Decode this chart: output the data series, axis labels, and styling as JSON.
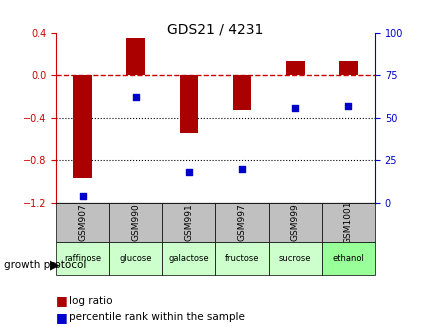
{
  "title": "GDS21 / 4231",
  "samples": [
    "GSM907",
    "GSM990",
    "GSM991",
    "GSM997",
    "GSM999",
    "GSM1001"
  ],
  "protocols": [
    "raffinose",
    "glucose",
    "galactose",
    "fructose",
    "sucrose",
    "ethanol"
  ],
  "log_ratio": [
    -0.97,
    0.35,
    -0.54,
    -0.33,
    0.13,
    0.13
  ],
  "percentile_rank": [
    4,
    62,
    18,
    20,
    56,
    57
  ],
  "ylim_left": [
    -1.2,
    0.4
  ],
  "yticks_left": [
    -1.2,
    -0.8,
    -0.4,
    0.0,
    0.4
  ],
  "ylim_right": [
    0,
    100
  ],
  "yticks_right": [
    0,
    25,
    50,
    75,
    100
  ],
  "bar_color": "#aa0000",
  "dot_color": "#0000cc",
  "zero_line_color": "#cc0000",
  "grid_color": "#000000",
  "protocol_colors": [
    "#ccffcc",
    "#ccffcc",
    "#ccffcc",
    "#ccffcc",
    "#ccffcc",
    "#99ff99"
  ],
  "legend_bar_color": "#aa0000",
  "legend_dot_color": "#0000cc"
}
